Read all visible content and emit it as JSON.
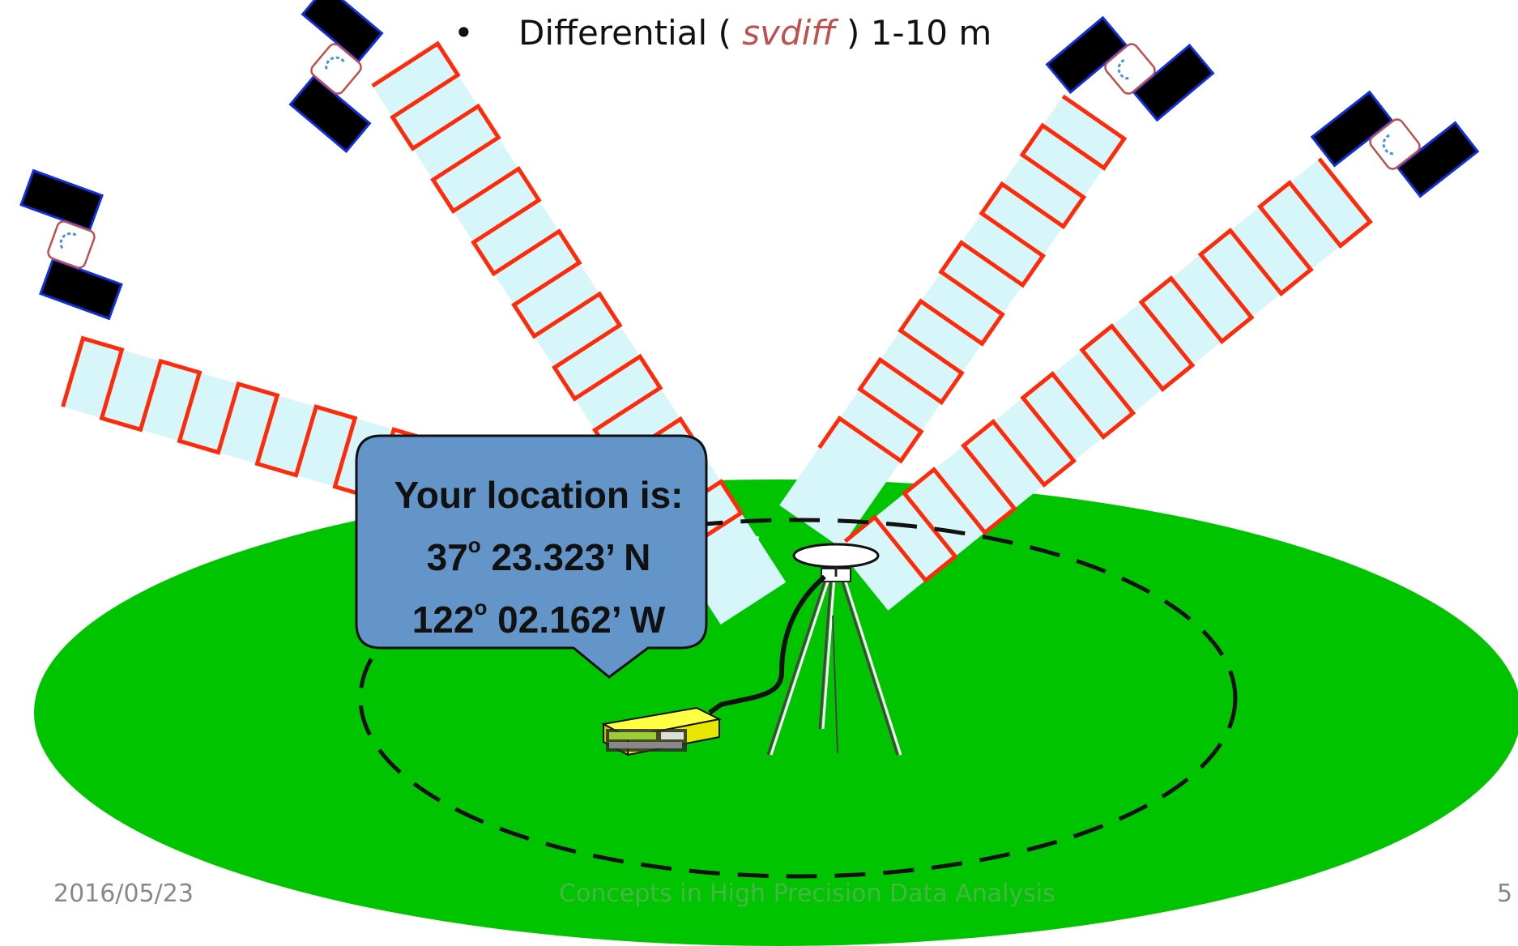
{
  "slide": {
    "bullet": {
      "marker": "•",
      "prefix": "Differential ( ",
      "keyword": "svdiff",
      "suffix": " ) 1-10 m"
    },
    "callout": {
      "heading": "Your location is:",
      "lat_deg": "37",
      "lat_rest": " 23.323’ N",
      "lon_deg": "122",
      "lon_rest": " 02.162’ W",
      "degree_mark": "o"
    },
    "footer": {
      "date": "2016/05/23",
      "title": "Concepts in High Precision Data Analysis",
      "page": "5"
    }
  },
  "colors": {
    "ground": "#00c400",
    "signal": "#ff2a0a",
    "signal_fill": "#d6f6fa",
    "callout_fill": "#6495c8",
    "keyword": "#c0504d"
  },
  "icons": [
    "satellite-icon",
    "antenna-icon",
    "tripod-icon",
    "receiver-icon"
  ]
}
